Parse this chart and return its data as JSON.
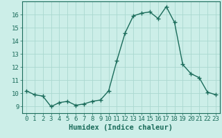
{
  "x": [
    0,
    1,
    2,
    3,
    4,
    5,
    6,
    7,
    8,
    9,
    10,
    11,
    12,
    13,
    14,
    15,
    16,
    17,
    18,
    19,
    20,
    21,
    22,
    23
  ],
  "y": [
    10.2,
    9.9,
    9.8,
    9.0,
    9.3,
    9.4,
    9.1,
    9.2,
    9.4,
    9.5,
    10.2,
    12.5,
    14.6,
    15.9,
    16.1,
    16.2,
    15.7,
    16.6,
    15.4,
    12.2,
    11.5,
    11.2,
    10.1,
    9.9
  ],
  "line_color": "#1a6b5a",
  "marker": "+",
  "bg_color": "#cceee8",
  "grid_color": "#aad8d0",
  "xlabel": "Humidex (Indice chaleur)",
  "ylim": [
    8.5,
    17.0
  ],
  "xlim": [
    -0.5,
    23.5
  ],
  "yticks": [
    9,
    10,
    11,
    12,
    13,
    14,
    15,
    16
  ],
  "xticks": [
    0,
    1,
    2,
    3,
    4,
    5,
    6,
    7,
    8,
    9,
    10,
    11,
    12,
    13,
    14,
    15,
    16,
    17,
    18,
    19,
    20,
    21,
    22,
    23
  ],
  "xlabel_fontsize": 7.5,
  "tick_fontsize": 6.5,
  "line_width": 1.0,
  "marker_size": 4
}
